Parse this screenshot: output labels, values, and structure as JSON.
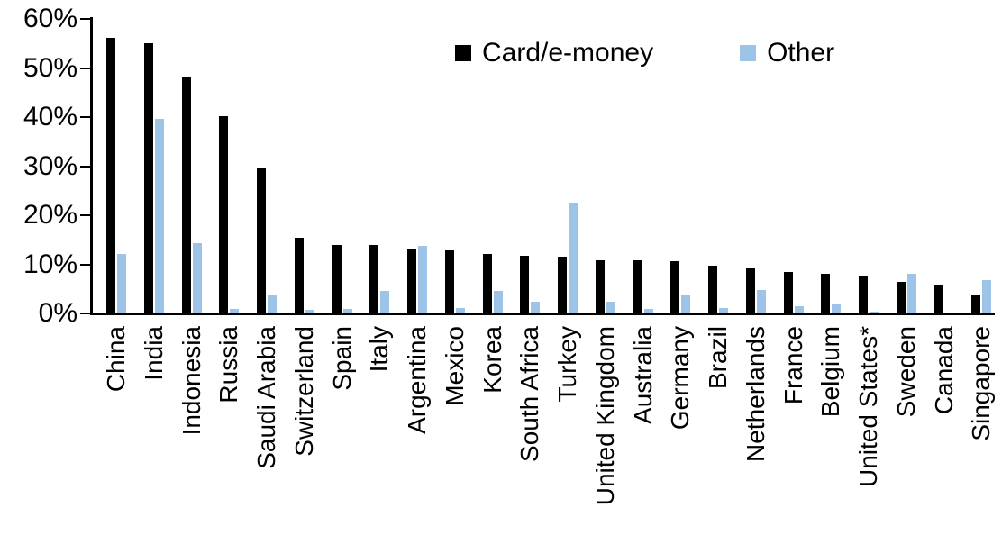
{
  "chart_data": {
    "type": "bar",
    "title": "",
    "xlabel": "",
    "ylabel": "",
    "ylim": [
      0,
      60
    ],
    "y_ticks": [
      "0%",
      "10%",
      "20%",
      "30%",
      "40%",
      "50%",
      "60%"
    ],
    "grid": "off",
    "legend_position": "top-center",
    "categories": [
      "China",
      "India",
      "Indonesia",
      "Russia",
      "Saudi Arabia",
      "Switzerland",
      "Spain",
      "Italy",
      "Argentina",
      "Mexico",
      "Korea",
      "South Africa",
      "Turkey",
      "United Kingdom",
      "Australia",
      "Germany",
      "Brazil",
      "Netherlands",
      "France",
      "Belgium",
      "United States*",
      "Sweden",
      "Canada",
      "Singapore"
    ],
    "series": [
      {
        "name": "Card/e-money",
        "color": "#000000",
        "values": [
          56.2,
          55.0,
          48.3,
          40.2,
          29.7,
          15.5,
          14.0,
          13.9,
          13.3,
          12.9,
          12.2,
          11.7,
          11.6,
          10.9,
          10.8,
          10.6,
          9.7,
          9.1,
          8.5,
          8.0,
          7.7,
          6.5,
          5.9,
          3.8
        ]
      },
      {
        "name": "Other",
        "color": "#9DC3E6",
        "values": [
          12.2,
          39.6,
          14.4,
          0.9,
          3.8,
          0.7,
          0.9,
          4.5,
          13.8,
          1.1,
          4.5,
          2.4,
          22.5,
          2.4,
          1.0,
          3.9,
          1.1,
          4.7,
          1.5,
          1.9,
          0.4,
          8.1,
          0.0,
          6.7
        ]
      }
    ]
  }
}
